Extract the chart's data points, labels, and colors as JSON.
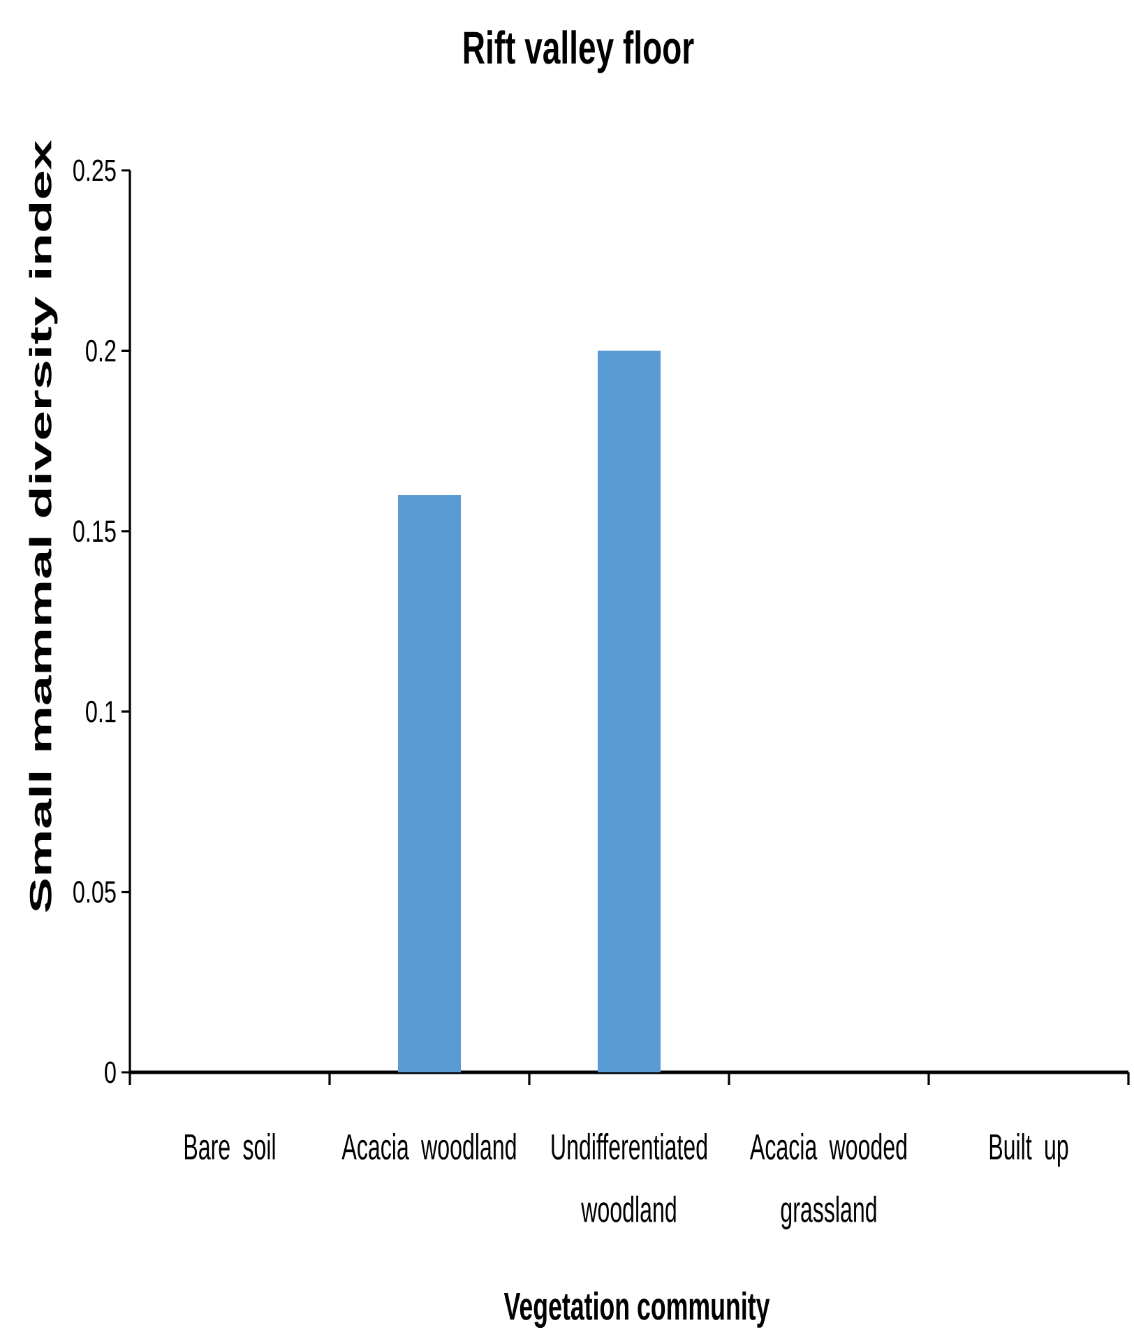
{
  "chart_data": {
    "type": "bar",
    "title": "Rift valley floor",
    "xlabel": "Vegetation community",
    "ylabel": "Small mammal diversity index",
    "categories": [
      "Bare soil",
      "Acacia woodland",
      "Undifferentiated woodland",
      "Acacia wooded grassland",
      "Built up"
    ],
    "values": [
      0,
      0.16,
      0.2,
      0,
      0
    ],
    "color": "#5b9bd5",
    "ylim": [
      0,
      0.25
    ],
    "yticks": [
      0,
      0.05,
      0.1,
      0.15,
      0.2,
      0.25
    ]
  }
}
